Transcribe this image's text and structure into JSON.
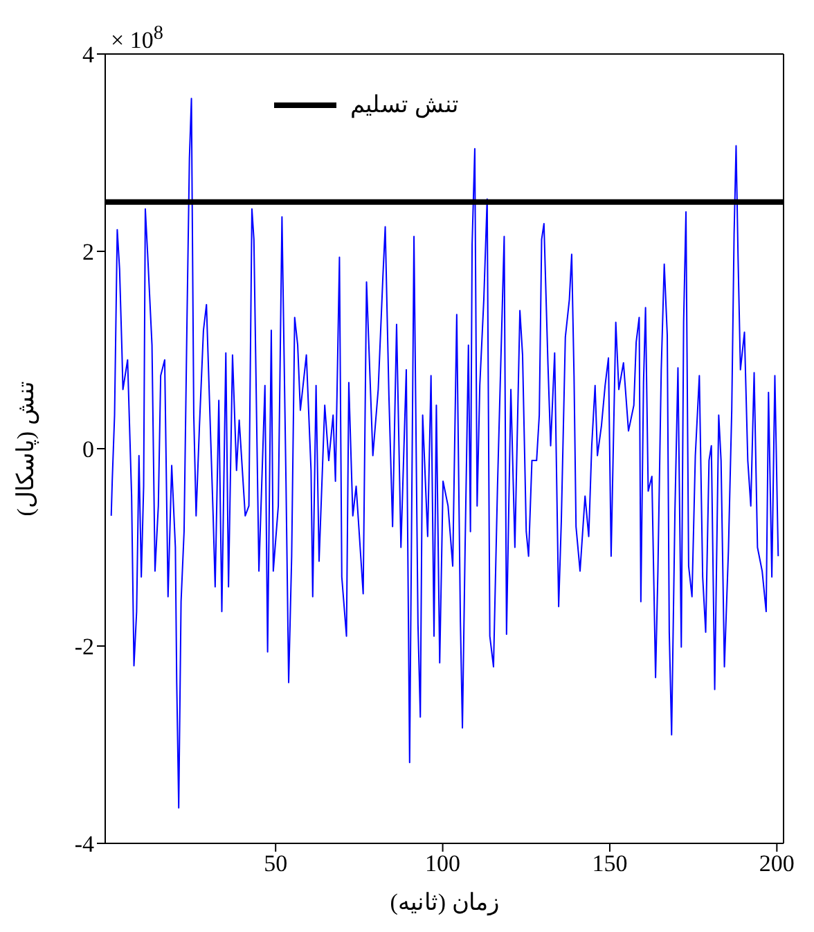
{
  "chart_data": {
    "type": "line",
    "xlabel": "زمان (ثانیه)",
    "ylabel": "تنش (پاسکال)",
    "annotations": [
      "× 10$^{8}$"
    ],
    "xlim": [
      -1,
      202
    ],
    "xticks": [
      50,
      100,
      150,
      200
    ],
    "ylim": [
      -4,
      4
    ],
    "yticks": [
      -4,
      -2,
      0,
      2,
      4
    ],
    "legend": "top",
    "marker": "none",
    "series": [
      {
        "color": "#0000ff",
        "x": [
          0.8,
          1.1,
          1.8,
          2.6,
          3.3,
          4.0,
          4.3,
          5.7,
          6.9,
          7.6,
          8.4,
          9.1,
          9.8,
          10.5,
          11.0,
          11.7,
          13.0,
          13.9,
          14.9,
          15.6,
          16.8,
          17.8,
          18.9,
          20.0,
          20.4,
          21.0,
          21.7,
          22.6,
          23.5,
          24.2,
          24.8,
          25.5,
          26.2,
          27.2,
          28.4,
          29.3,
          30.1,
          31.3,
          31.9,
          33.0,
          33.9,
          35.1,
          35.9,
          37.1,
          38.3,
          39.1,
          40.9,
          42.0,
          42.9,
          43.5,
          45.0,
          46.8,
          47.6,
          48.7,
          49.3,
          50.8,
          51.9,
          53.1,
          53.9,
          54.8,
          55.7,
          56.6,
          57.4,
          59.2,
          60.6,
          61.1,
          62.1,
          63.0,
          64.7,
          65.9,
          67.2,
          67.9,
          69.1,
          69.8,
          71.2,
          71.9,
          73.1,
          74.1,
          76.2,
          77.2,
          78.0,
          79.1,
          80.7,
          82.1,
          82.8,
          83.9,
          85.0,
          86.2,
          87.5,
          89.1,
          90.1,
          91.4,
          92.6,
          93.3,
          94.0,
          95.5,
          96.5,
          97.4,
          98.1,
          99.1,
          100.1,
          101.6,
          103.0,
          104.2,
          105.3,
          105.9,
          106.7,
          107.7,
          108.3,
          108.8,
          109.6,
          110.3,
          111.1,
          112.3,
          113.3,
          114.1,
          115.2,
          116.4,
          117.2,
          118.4,
          119.1,
          120.4,
          121.6,
          123.1,
          123.9,
          125.0,
          125.7,
          126.7,
          128.1,
          128.9,
          129.6,
          130.3,
          131.5,
          132.3,
          133.5,
          134.7,
          135.5,
          136.7,
          137.9,
          138.6,
          139.3,
          139.9,
          141.1,
          142.6,
          143.7,
          144.6,
          145.6,
          146.3,
          147.5,
          148.6,
          149.6,
          150.4,
          151.8,
          152.7,
          154.1,
          155.6,
          157.2,
          157.9,
          158.8,
          159.3,
          160.1,
          160.7,
          161.5,
          162.6,
          163.7,
          164.4,
          165.4,
          166.3,
          167.2,
          167.8,
          168.5,
          169.5,
          170.4,
          171.4,
          172.1,
          172.8,
          173.6,
          174.6,
          175.6,
          176.8,
          177.8,
          178.7,
          179.7,
          180.4,
          181.4,
          182.6,
          183.3,
          184.3,
          185.5,
          186.5,
          187.2,
          187.8,
          188.4,
          189.1,
          190.3,
          191.3,
          192.2,
          193.2,
          194.2,
          195.6,
          196.8,
          197.5,
          198.5,
          199.4,
          200.4
        ],
        "values": [
          -0.68,
          -0.33,
          0.34,
          2.22,
          1.82,
          1.0,
          0.6,
          0.9,
          -0.48,
          -2.2,
          -1.65,
          -0.07,
          -1.3,
          -0.38,
          2.43,
          1.97,
          1.05,
          -1.24,
          -0.58,
          0.74,
          0.9,
          -1.5,
          -0.17,
          -1.0,
          -2.37,
          -3.64,
          -1.55,
          -0.84,
          1.36,
          2.94,
          3.55,
          0.34,
          -0.68,
          0.23,
          1.2,
          1.46,
          0.6,
          -0.68,
          -1.4,
          0.49,
          -1.65,
          0.97,
          -1.4,
          0.95,
          -0.22,
          0.29,
          -0.68,
          -0.58,
          2.43,
          2.12,
          -1.24,
          0.64,
          -2.06,
          1.2,
          -1.24,
          -0.58,
          2.35,
          -0.33,
          -2.37,
          -1.09,
          1.33,
          1.05,
          0.39,
          0.95,
          -0.22,
          -1.5,
          0.64,
          -1.14,
          0.44,
          -0.12,
          0.34,
          -0.33,
          1.94,
          -1.3,
          -1.9,
          0.67,
          -0.68,
          -0.38,
          -1.47,
          1.69,
          0.95,
          -0.07,
          0.6,
          1.74,
          2.25,
          0.54,
          -0.79,
          1.26,
          -1.0,
          0.8,
          -3.18,
          2.15,
          -1.78,
          -2.72,
          0.34,
          -0.89,
          0.74,
          -1.9,
          0.44,
          -2.17,
          -0.33,
          -0.58,
          -1.19,
          1.36,
          -1.76,
          -2.83,
          -1.0,
          1.05,
          -0.84,
          2.07,
          3.04,
          -0.58,
          0.64,
          1.51,
          2.53,
          -1.9,
          -2.21,
          -0.38,
          0.64,
          2.15,
          -1.88,
          0.6,
          -1.0,
          1.4,
          0.95,
          -0.84,
          -1.09,
          -0.12,
          -0.12,
          0.34,
          2.12,
          2.28,
          0.85,
          0.03,
          0.97,
          -1.6,
          -0.73,
          1.13,
          1.51,
          1.97,
          0.74,
          -0.79,
          -1.24,
          -0.48,
          -0.89,
          0.03,
          0.64,
          -0.07,
          0.23,
          0.64,
          0.92,
          -1.09,
          1.28,
          0.6,
          0.87,
          0.18,
          0.44,
          1.08,
          1.33,
          -1.55,
          0.67,
          1.43,
          -0.43,
          -0.28,
          -2.32,
          -1.24,
          0.8,
          1.87,
          1.15,
          -1.86,
          -2.9,
          -0.63,
          0.82,
          -2.01,
          1.28,
          2.4,
          -1.19,
          -1.5,
          -0.07,
          0.74,
          -1.3,
          -1.86,
          -0.12,
          0.03,
          -2.44,
          0.34,
          -0.12,
          -2.21,
          -1.04,
          0.39,
          2.17,
          3.07,
          1.92,
          0.8,
          1.18,
          -0.12,
          -0.58,
          0.77,
          -1.0,
          -1.24,
          -1.65,
          0.57,
          -1.3,
          0.74,
          -1.09
        ]
      },
      {
        "name": "تنش تسلیم",
        "color": "#000000",
        "x": [
          -1,
          202
        ],
        "values": [
          2.5,
          2.5
        ]
      }
    ]
  }
}
